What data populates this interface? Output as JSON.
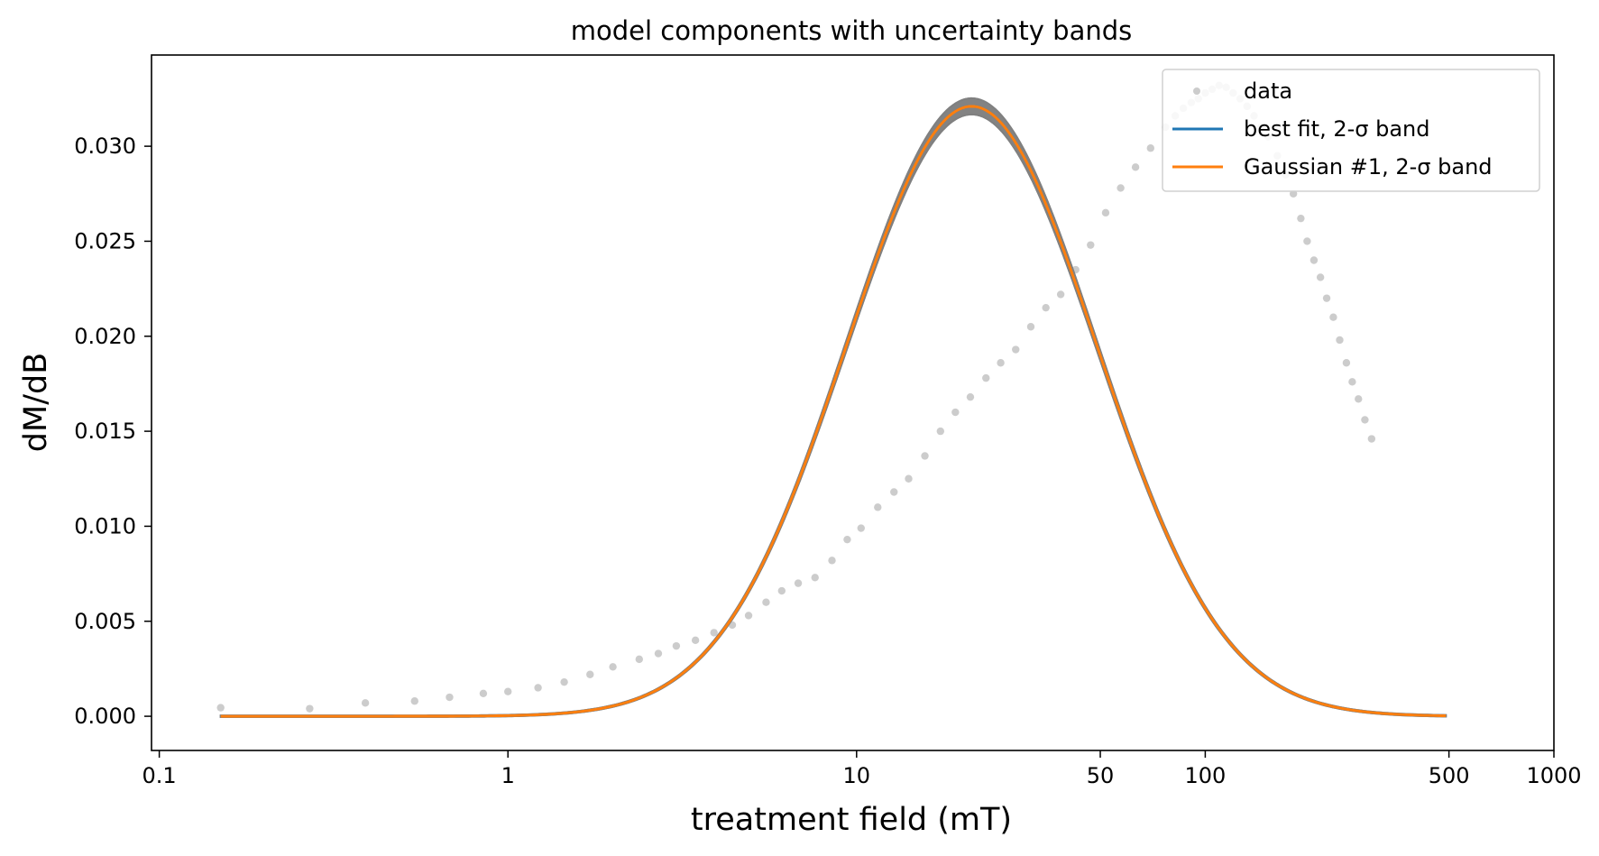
{
  "chart_data": {
    "type": "scatter",
    "title": "model components with uncertainty bands",
    "xlabel": "treatment field (mT)",
    "ylabel": "dM/dB",
    "xscale": "log",
    "xlim": [
      0.095,
      1000
    ],
    "ylim": [
      -0.0018,
      0.0348
    ],
    "grid": false,
    "legend_position": "top-right",
    "x_ticks": [
      {
        "value": 0.1,
        "label": "0.1"
      },
      {
        "value": 1,
        "label": "1"
      },
      {
        "value": 10,
        "label": "10"
      },
      {
        "value": 50,
        "label": "50"
      },
      {
        "value": 100,
        "label": "100"
      },
      {
        "value": 500,
        "label": "500"
      },
      {
        "value": 1000,
        "label": "1000"
      }
    ],
    "y_ticks": [
      {
        "value": 0.0,
        "label": "0.000"
      },
      {
        "value": 0.005,
        "label": "0.005"
      },
      {
        "value": 0.01,
        "label": "0.010"
      },
      {
        "value": 0.015,
        "label": "0.015"
      },
      {
        "value": 0.02,
        "label": "0.020"
      },
      {
        "value": 0.025,
        "label": "0.025"
      },
      {
        "value": 0.03,
        "label": "0.030"
      }
    ],
    "series": [
      {
        "name": "data",
        "kind": "scatter",
        "color": "#cccccc",
        "points": [
          [
            0.15,
            0.00045
          ],
          [
            0.27,
            0.0004
          ],
          [
            0.39,
            0.0007
          ],
          [
            0.54,
            0.0008
          ],
          [
            0.68,
            0.001
          ],
          [
            0.85,
            0.0012
          ],
          [
            1.0,
            0.0013
          ],
          [
            1.22,
            0.0015
          ],
          [
            1.45,
            0.0018
          ],
          [
            1.72,
            0.0022
          ],
          [
            2.0,
            0.0026
          ],
          [
            2.38,
            0.003
          ],
          [
            2.7,
            0.0033
          ],
          [
            3.04,
            0.0037
          ],
          [
            3.45,
            0.004
          ],
          [
            3.9,
            0.0044
          ],
          [
            4.4,
            0.0048
          ],
          [
            4.9,
            0.0053
          ],
          [
            5.5,
            0.006
          ],
          [
            6.1,
            0.0066
          ],
          [
            6.8,
            0.007
          ],
          [
            7.6,
            0.0073
          ],
          [
            8.5,
            0.0082
          ],
          [
            9.4,
            0.0093
          ],
          [
            10.3,
            0.0099
          ],
          [
            11.5,
            0.011
          ],
          [
            12.8,
            0.0118
          ],
          [
            14.1,
            0.0125
          ],
          [
            15.7,
            0.0137
          ],
          [
            17.4,
            0.015
          ],
          [
            19.2,
            0.016
          ],
          [
            21.2,
            0.0168
          ],
          [
            23.5,
            0.0178
          ],
          [
            25.9,
            0.0186
          ],
          [
            28.6,
            0.0193
          ],
          [
            31.6,
            0.0205
          ],
          [
            34.9,
            0.0215
          ],
          [
            38.5,
            0.0222
          ],
          [
            42.5,
            0.0235
          ],
          [
            46.9,
            0.0248
          ],
          [
            51.8,
            0.0265
          ],
          [
            57.2,
            0.0278
          ],
          [
            63.1,
            0.0289
          ],
          [
            69.7,
            0.0299
          ],
          [
            76.9,
            0.031
          ],
          [
            82.0,
            0.0316
          ],
          [
            86.5,
            0.032
          ],
          [
            91.2,
            0.0323
          ],
          [
            95.5,
            0.0325
          ],
          [
            100.0,
            0.0328
          ],
          [
            104.7,
            0.033
          ],
          [
            109.6,
            0.0332
          ],
          [
            114.8,
            0.0331
          ],
          [
            120.2,
            0.0328
          ],
          [
            125.9,
            0.0325
          ],
          [
            131.8,
            0.0321
          ],
          [
            138.0,
            0.0316
          ],
          [
            144.5,
            0.031
          ],
          [
            151.4,
            0.0305
          ],
          [
            161.0,
            0.0295
          ],
          [
            170.0,
            0.0285
          ],
          [
            179.0,
            0.0275
          ],
          [
            188.0,
            0.0262
          ],
          [
            196.0,
            0.025
          ],
          [
            205.0,
            0.024
          ],
          [
            214.0,
            0.0231
          ],
          [
            223.0,
            0.022
          ],
          [
            233.0,
            0.021
          ],
          [
            243.0,
            0.0198
          ],
          [
            254.0,
            0.0186
          ],
          [
            264.0,
            0.0176
          ],
          [
            275.0,
            0.0167
          ],
          [
            287.0,
            0.0156
          ],
          [
            300.0,
            0.0146
          ]
        ]
      },
      {
        "name": "best fit, 2-σ band",
        "kind": "line",
        "color": "#1f77b4",
        "band_color": "#808080",
        "model": {
          "amplitude": 0.0321,
          "log10_mu": 1.33,
          "sigma_log10": 0.36
        },
        "x_range": [
          0.15,
          490
        ]
      },
      {
        "name": "Gaussian #1, 2-σ band",
        "kind": "line",
        "color": "#ff7f0e",
        "band_color": "#808080",
        "model": {
          "amplitude": 0.0321,
          "log10_mu": 1.33,
          "sigma_log10": 0.36
        },
        "x_range": [
          0.15,
          490
        ]
      }
    ]
  }
}
